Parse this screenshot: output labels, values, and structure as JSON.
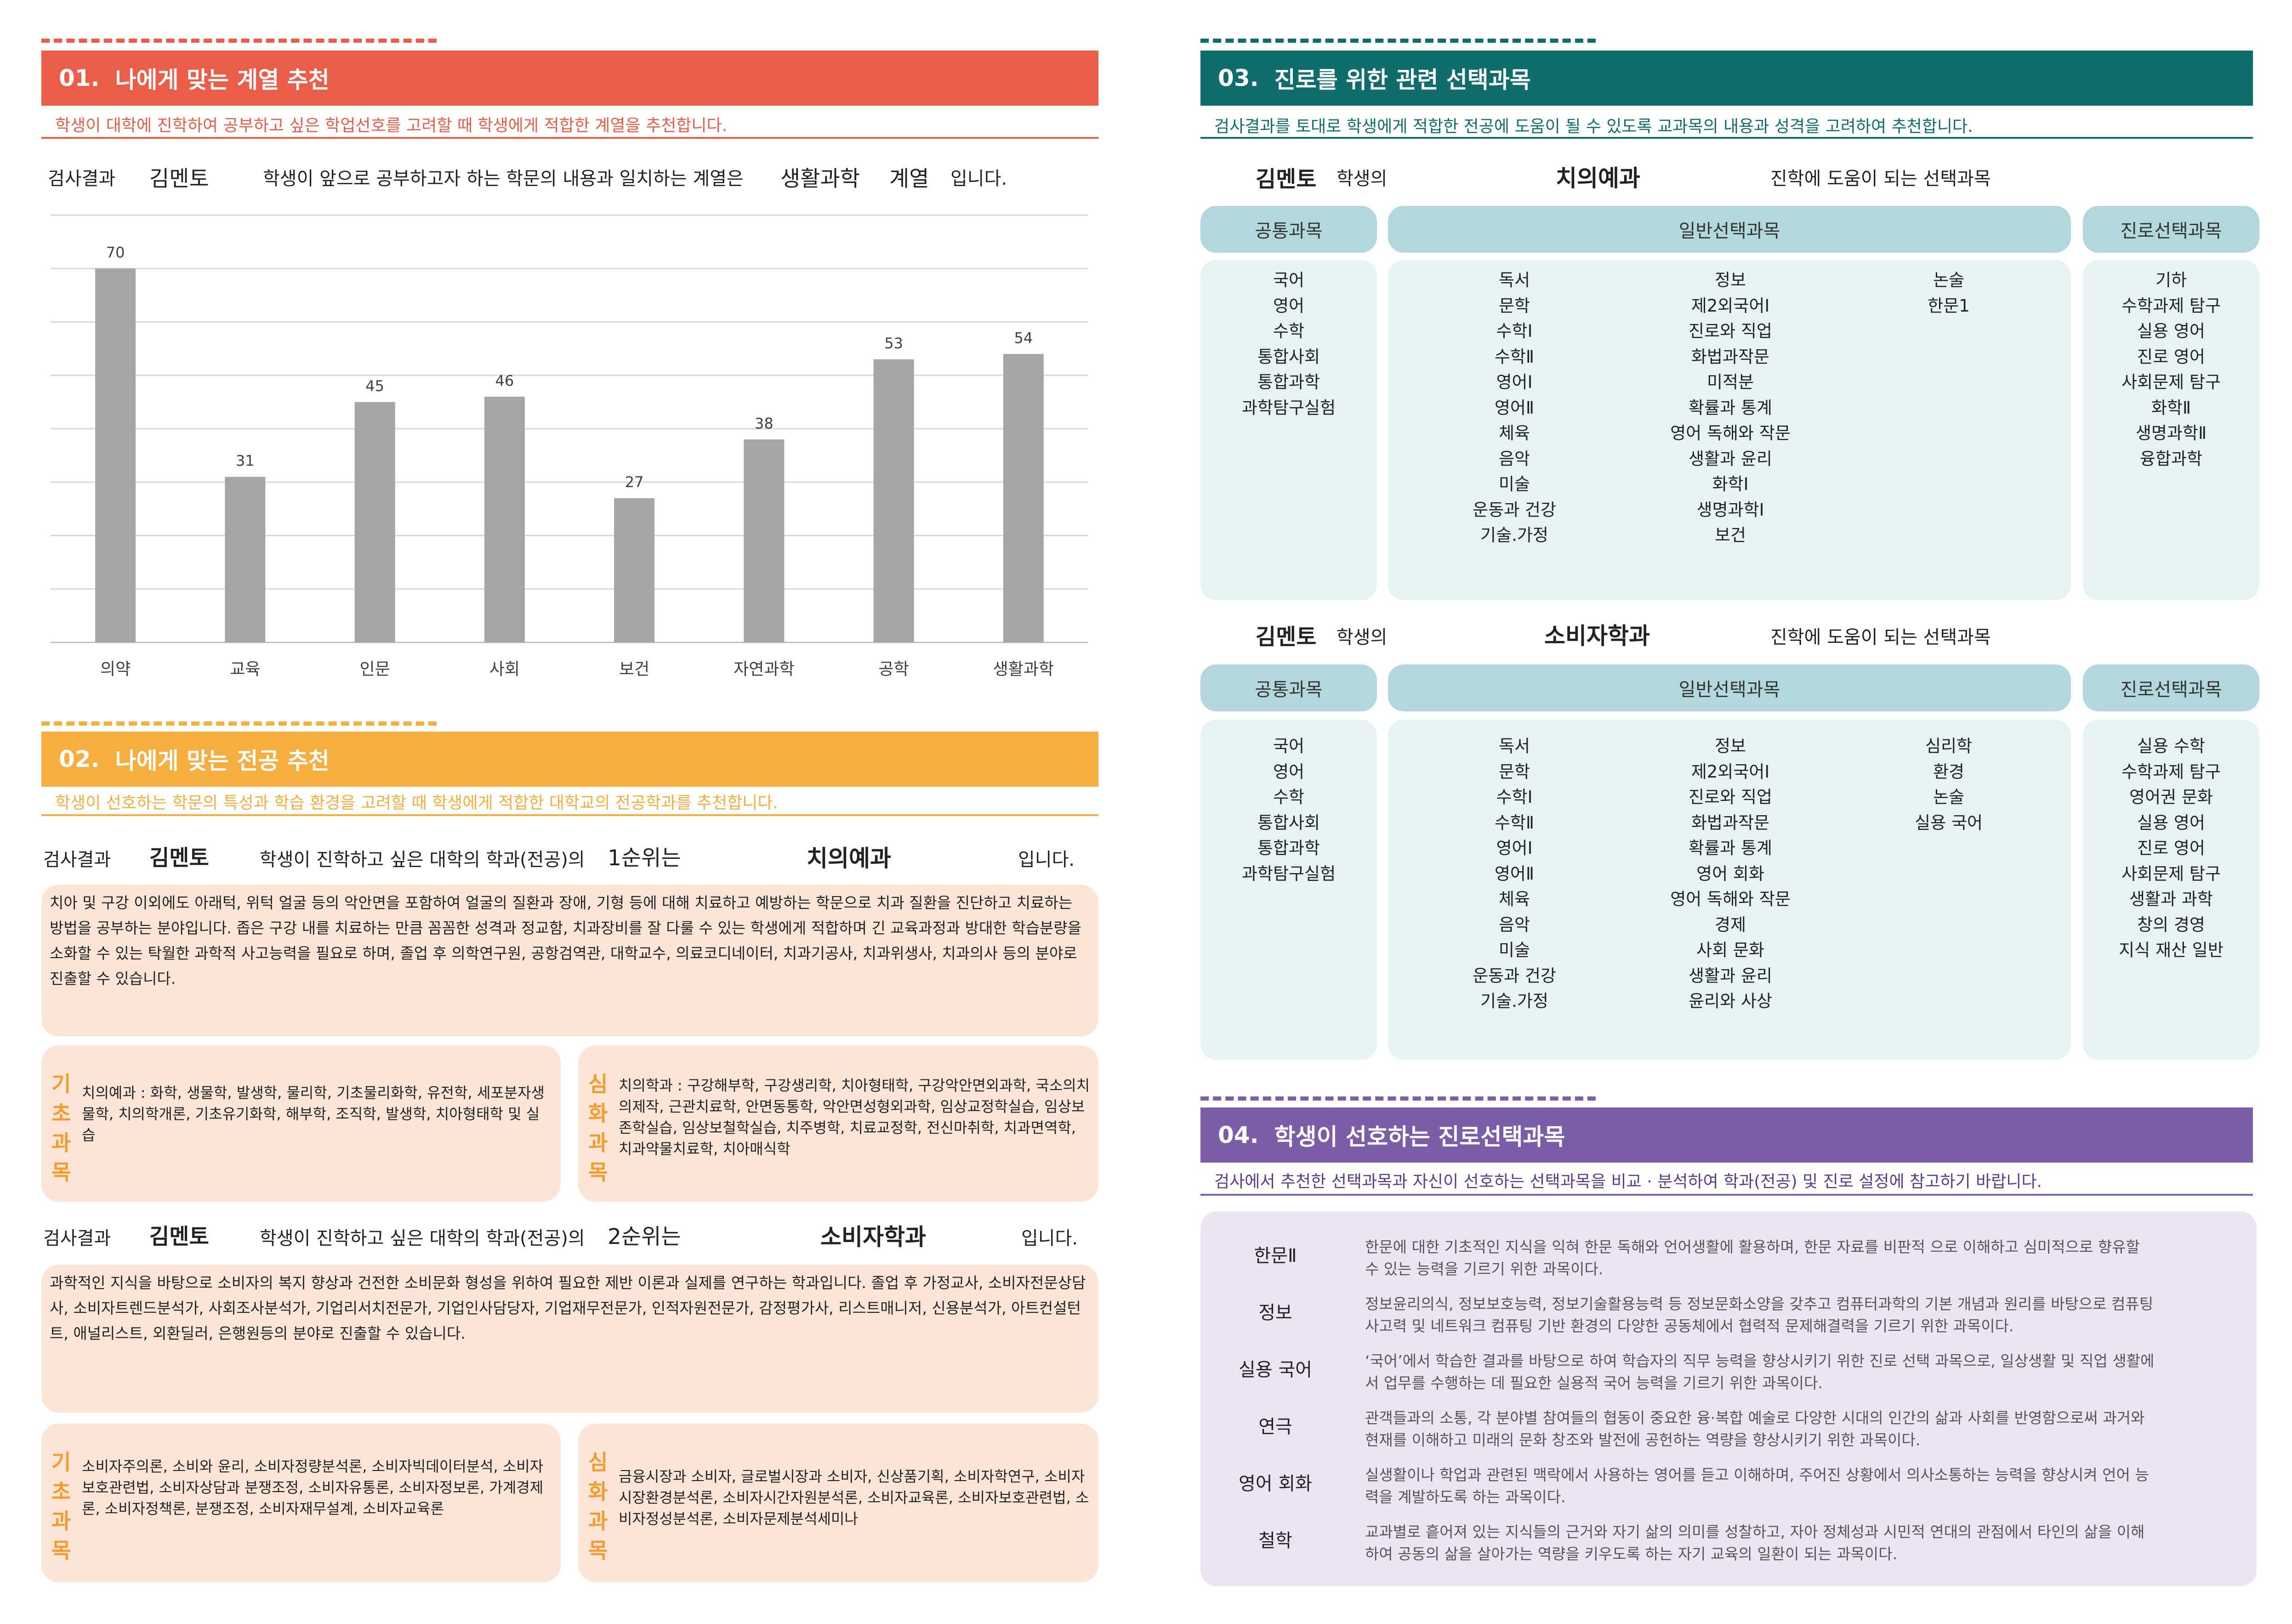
{
  "s1": {
    "num": "01.",
    "title": "나에게 맞는 계열 추천",
    "subtitle": "학생이 대학에 진학하여 공부하고 싶은 학업선호를 고려할 때 학생에게 적합한 계열을 추천합니다.",
    "result_label": "검사결과",
    "student": "김멘토",
    "sentence": "학생이 앞으로 공부하고자 하는 학문의 내용과 일치하는 계열은",
    "field": "생활과학",
    "suffix1": "계열",
    "suffix2": "입니다."
  },
  "chart_data": {
    "type": "bar",
    "categories": [
      "의약",
      "교육",
      "인문",
      "사회",
      "보건",
      "자연과학",
      "공학",
      "생활과학"
    ],
    "values": [
      70,
      31,
      45,
      46,
      27,
      38,
      53,
      54
    ],
    "ylim": [
      0,
      80
    ],
    "grid": true,
    "bar_color": "#a5a5a5"
  },
  "s2": {
    "num": "02.",
    "title": "나에게 맞는 전공 추천",
    "subtitle": "학생이 선호하는 학문의 특성과 학습 환경을 고려할 때 학생에게 적합한 대학교의 전공학과를 추천합니다.",
    "rec1": {
      "result_label": "검사결과",
      "student": "김멘토",
      "sentence": "학생이 진학하고 싶은 대학의 학과(전공)의",
      "rank": "1순위는",
      "major": "치의예과",
      "suffix": "입니다.",
      "description": "치아 및 구강 이외에도 아래턱, 위턱 얼굴 등의 악안면을 포함하여 얼굴의 질환과 장애, 기형 등에 대해 치료하고 예방하는 학문으로 치과 질환을 진단하고 치료하는 방법을 공부하는 분야입니다. 좁은 구강 내를 치료하는 만큼 꼼꼼한 성격과 정교함, 치과장비를 잘 다룰 수 있는 학생에게 적합하며 긴 교육과정과 방대한 학습분량을 소화할 수 있는 탁월한 과학적 사고능력을 필요로 하며, 졸업 후 의학연구원, 공항검역관, 대학교수, 의료코디네이터, 치과기공사, 치과위생사, 치과의사 등의 분야로 진출할 수 있습니다.",
      "basic_label": "기초과목",
      "basic": "치의예과 : 화학, 생물학, 발생학, 물리학, 기초물리화학, 유전학, 세포분자생물학, 치의학개론, 기초유기화학, 해부학, 조직학, 발생학, 치아형태학 및 실습",
      "adv_label": "심화과목",
      "adv": "치의학과 : 구강해부학, 구강생리학, 치아형태학, 구강악안면외과학, 국소의치의제작, 근관치료학, 안면동통학, 악안면성형외과학, 임상교정학실습, 임상보존학실습, 임상보철학실습, 치주병학, 치료교정학, 전신마취학, 치과면역학, 치과약물치료학, 치아매식학"
    },
    "rec2": {
      "result_label": "검사결과",
      "student": "김멘토",
      "sentence": "학생이 진학하고 싶은 대학의 학과(전공)의",
      "rank": "2순위는",
      "major": "소비자학과",
      "suffix": "입니다.",
      "description": "과학적인 지식을 바탕으로 소비자의 복지 향상과 건전한 소비문화 형성을 위하여 필요한 제반 이론과 실제를 연구하는 학과입니다. 졸업 후 가정교사, 소비자전문상담사, 소비자트렌드분석가, 사회조사분석가, 기업리서치전문가, 기업인사담당자, 기업재무전문가, 인적자원전문가, 감정평가사, 리스트매니저, 신용분석가, 아트컨설턴트, 애널리스트, 외환딜러, 은행원등의 분야로 진출할 수 있습니다.",
      "basic_label": "기초과목",
      "basic": "소비자주의론, 소비와 윤리, 소비자정량분석론, 소비자빅데이터분석, 소비자보호관련법, 소비자상담과 분쟁조정, 소비자유통론, 소비자정보론, 가계경제론, 소비자정책론, 분쟁조정, 소비자재무설계, 소비자교육론",
      "adv_label": "심화과목",
      "adv": "금융시장과 소비자, 글로벌시장과 소비자, 신상품기획, 소비자학연구, 소비자시장환경분석론, 소비자시간자원분석론, 소비자교육론, 소비자보호관련법, 소비자정성분석론, 소비자문제분석세미나"
    }
  },
  "s3": {
    "num": "03.",
    "title": "진로를 위한 관련 선택과목",
    "subtitle": "검사결과를 토대로 학생에게 적합한 전공에 도움이 될 수 있도록 교과목의 내용과 성격을 고려하여 추천합니다.",
    "headers": {
      "common": "공통과목",
      "general": "일반선택과목",
      "career": "진로선택과목"
    },
    "table1": {
      "student": "김멘토",
      "of": "학생의",
      "major": "치의예과",
      "suffix": "진학에 도움이 되는 선택과목",
      "common": [
        "국어",
        "영어",
        "수학",
        "통합사회",
        "통합과학",
        "과학탐구실험"
      ],
      "general_a": [
        "독서",
        "문학",
        "수학Ⅰ",
        "수학Ⅱ",
        "영어Ⅰ",
        "영어Ⅱ",
        "체육",
        "음악",
        "미술",
        "운동과 건강",
        "기술.가정"
      ],
      "general_b": [
        "정보",
        "제2외국어Ⅰ",
        "진로와 직업",
        "화법과작문",
        "미적분",
        "확률과 통계",
        "영어 독해와 작문",
        "생활과 윤리",
        "화학Ⅰ",
        "생명과학Ⅰ",
        "보건"
      ],
      "general_c": [
        "논술",
        "한문1"
      ],
      "career": [
        "기하",
        "수학과제 탐구",
        "실용 영어",
        "진로 영어",
        "사회문제 탐구",
        "화학Ⅱ",
        "생명과학Ⅱ",
        "융합과학"
      ]
    },
    "table2": {
      "student": "김멘토",
      "of": "학생의",
      "major": "소비자학과",
      "suffix": "진학에 도움이 되는 선택과목",
      "common": [
        "국어",
        "영어",
        "수학",
        "통합사회",
        "통합과학",
        "과학탐구실험"
      ],
      "general_a": [
        "독서",
        "문학",
        "수학Ⅰ",
        "수학Ⅱ",
        "영어Ⅰ",
        "영어Ⅱ",
        "체육",
        "음악",
        "미술",
        "운동과 건강",
        "기술.가정"
      ],
      "general_b": [
        "정보",
        "제2외국어Ⅰ",
        "진로와 직업",
        "화법과작문",
        "확률과 통계",
        "영어 회화",
        "영어 독해와 작문",
        "경제",
        "사회 문화",
        "생활과 윤리",
        "윤리와 사상"
      ],
      "general_c": [
        "심리학",
        "환경",
        "논술",
        "실용 국어"
      ],
      "career": [
        "실용 수학",
        "수학과제 탐구",
        "영어권 문화",
        "실용 영어",
        "진로 영어",
        "사회문제 탐구",
        "생활과 과학",
        "창의 경영",
        "지식 재산 일반"
      ]
    }
  },
  "s4": {
    "num": "04.",
    "title": "학생이 선호하는 진로선택과목",
    "subtitle": "검사에서 추천한 선택과목과 자신이 선호하는 선택과목을 비교 · 분석하여 학과(전공) 및 진로 설정에 참고하기 바랍니다.",
    "items": [
      {
        "name": "한문Ⅱ",
        "desc1": "한문에 대한 기초적인 지식을 익혀 한문 독해와 언어생활에 활용하며, 한문 자료를 비판적 으로 이해하고 심미적으로 향유할",
        "desc2": "수 있는 능력을 기르기 위한 과목이다."
      },
      {
        "name": "정보",
        "desc1": "정보윤리의식, 정보보호능력, 정보기술활용능력 등 정보문화소양을 갖추고 컴퓨터과학의 기본 개념과 원리를 바탕으로 컴퓨팅",
        "desc2": "사고력 및 네트워크 컴퓨팅 기반 환경의 다양한 공동체에서 협력적 문제해결력을 기르기 위한 과목이다."
      },
      {
        "name": "실용 국어",
        "desc1": "‘국어’에서 학습한 결과를 바탕으로 하여 학습자의 직무 능력을 향상시키기 위한 진로 선택 과목으로, 일상생활 및 직업 생활에",
        "desc2": "서 업무를 수행하는 데 필요한 실용적 국어 능력을 기르기 위한 과목이다."
      },
      {
        "name": "연극",
        "desc1": "관객들과의 소통, 각 분야별 참여들의 협동이 중요한 융·복합 예술로 다양한 시대의 인간의 삶과 사회를 반영함으로써 과거와",
        "desc2": "현재를 이해하고 미래의 문화 창조와 발전에 공헌하는 역량을 향상시키기 위한 과목이다."
      },
      {
        "name": "영어 회화",
        "desc1": "실생활이나 학업과 관련된 맥락에서 사용하는 영어를 듣고 이해하며, 주어진 상황에서 의사소통하는 능력을 향상시켜 언어 능",
        "desc2": "력을 계발하도록 하는 과목이다."
      },
      {
        "name": "철학",
        "desc1": "교과별로 흩어져 있는 지식들의 근거와 자기 삶의 의미를 성찰하고, 자아 정체성과 시민적 연대의 관점에서 타인의 삶을 이해",
        "desc2": "하여 공동의 삶을 살아가는 역량을 키우도록 하는 자기 교육의 일환이 되는 과목이다."
      }
    ]
  },
  "colors": {
    "s1": "#ec5d48",
    "s2": "#f6ae3e",
    "s3": "#0f6d6b",
    "s4": "#7b5ea7",
    "chart_bar": "#a5a5a5"
  }
}
